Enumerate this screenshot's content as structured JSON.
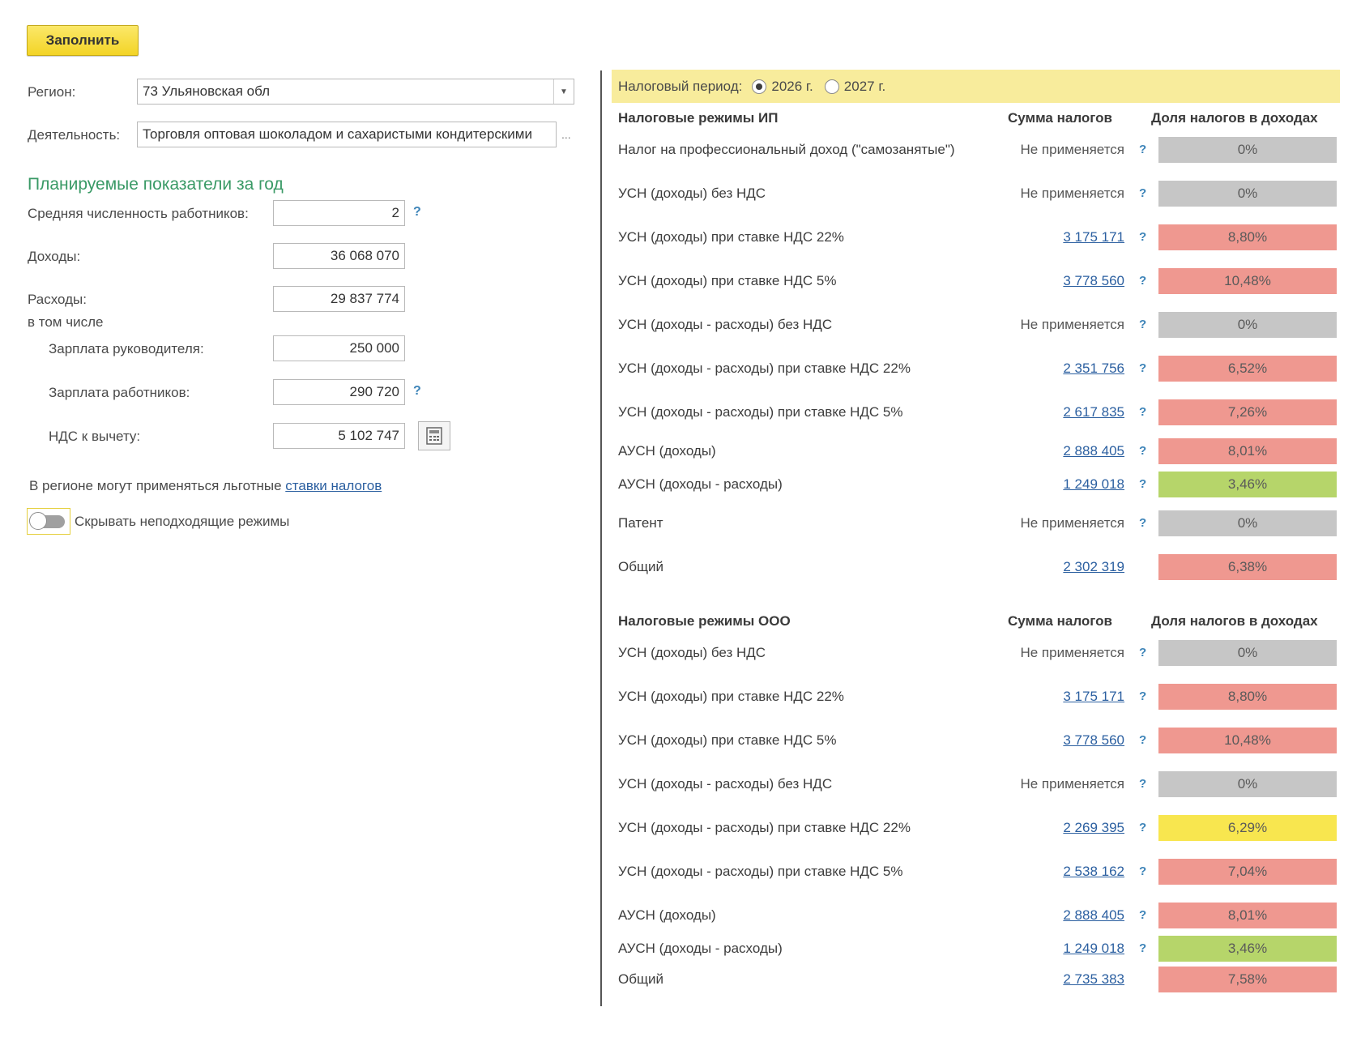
{
  "toolbar": {
    "fill_label": "Заполнить"
  },
  "form": {
    "region_label": "Регион:",
    "region_value": "73 Ульяновская обл",
    "activity_label": "Деятельность:",
    "activity_value": "Торговля оптовая шоколадом и сахаристыми кондитерскими",
    "activity_more": "...",
    "section_title": "Планируемые показатели за год",
    "employees_label": "Средняя численность работников:",
    "employees_value": "2",
    "income_label": "Доходы:",
    "income_value": "36 068 070",
    "expenses_label": "Расходы:",
    "including_label": "в том числе",
    "director_salary_label": "Зарплата руководителя:",
    "director_salary_value": "250 000",
    "employees_salary_label": "Зарплата работников:",
    "employees_salary_value": "290 720",
    "vat_label": "НДС к вычету:",
    "vat_value": "5 102 747",
    "expenses_value": "29 837 774",
    "benefit_text": "В регионе могут применяться льготные ",
    "benefit_link": "ставки налогов",
    "hide_toggle_label": "Скрывать неподходящие режимы",
    "hide_toggle_on": false,
    "help_mark": "?"
  },
  "period": {
    "label": "Налоговый период:",
    "options": [
      {
        "label": "2026 г.",
        "selected": true
      },
      {
        "label": "2027 г.",
        "selected": false
      }
    ]
  },
  "columns": {
    "sum": "Сумма налогов",
    "share": "Доля налогов в доходах"
  },
  "colors": {
    "grey": "#c6c6c6",
    "red": "#ef9890",
    "green": "#b6d56a",
    "yellow": "#f8e64f"
  },
  "ip": {
    "title": "Налоговые режимы ИП",
    "rows": [
      {
        "name": "Налог на профессиональный доход (\"самозанятые\")",
        "sum": "Не применяется",
        "share": "0%",
        "color": "grey",
        "help": true
      },
      {
        "name": "УСН (доходы) без НДС",
        "sum": "Не применяется",
        "share": "0%",
        "color": "grey",
        "help": true
      },
      {
        "name": "УСН (доходы) при ставке НДС 22%",
        "sum": "3 175 171",
        "share": "8,80%",
        "color": "red",
        "help": true
      },
      {
        "name": "УСН (доходы) при ставке НДС 5%",
        "sum": "3 778 560",
        "share": "10,48%",
        "color": "red",
        "help": true
      },
      {
        "name": "УСН (доходы - расходы) без НДС",
        "sum": "Не применяется",
        "share": "0%",
        "color": "grey",
        "help": true
      },
      {
        "name": "УСН (доходы - расходы) при ставке НДС 22%",
        "sum": "2 351 756",
        "share": "6,52%",
        "color": "red",
        "help": true
      },
      {
        "name": "УСН (доходы - расходы) при ставке НДС 5%",
        "sum": "2 617 835",
        "share": "7,26%",
        "color": "red",
        "help": true
      },
      {
        "name": "АУСН (доходы)",
        "sum": "2 888 405",
        "share": "8,01%",
        "color": "red",
        "help": true
      },
      {
        "name": "АУСН (доходы - расходы)",
        "sum": "1 249 018",
        "share": "3,46%",
        "color": "green",
        "help": true
      },
      {
        "name": "Патент",
        "sum": "Не применяется",
        "share": "0%",
        "color": "grey",
        "help": true
      },
      {
        "name": "Общий",
        "sum": "2 302 319",
        "share": "6,38%",
        "color": "red",
        "help": false
      }
    ]
  },
  "ooo": {
    "title": "Налоговые режимы ООО",
    "rows": [
      {
        "name": "УСН (доходы) без НДС",
        "sum": "Не применяется",
        "share": "0%",
        "color": "grey",
        "help": true
      },
      {
        "name": "УСН (доходы) при ставке НДС 22%",
        "sum": "3 175 171",
        "share": "8,80%",
        "color": "red",
        "help": true
      },
      {
        "name": "УСН (доходы) при ставке НДС 5%",
        "sum": "3 778 560",
        "share": "10,48%",
        "color": "red",
        "help": true
      },
      {
        "name": "УСН (доходы - расходы) без НДС",
        "sum": "Не применяется",
        "share": "0%",
        "color": "grey",
        "help": true
      },
      {
        "name": "УСН (доходы - расходы) при ставке НДС 22%",
        "sum": "2 269 395",
        "share": "6,29%",
        "color": "yellow",
        "help": true
      },
      {
        "name": "УСН (доходы - расходы) при ставке НДС 5%",
        "sum": "2 538 162",
        "share": "7,04%",
        "color": "red",
        "help": true
      },
      {
        "name": "АУСН (доходы)",
        "sum": "2 888 405",
        "share": "8,01%",
        "color": "red",
        "help": true
      },
      {
        "name": "АУСН (доходы - расходы)",
        "sum": "1 249 018",
        "share": "3,46%",
        "color": "green",
        "help": true
      },
      {
        "name": "Общий",
        "sum": "2 735 383",
        "share": "7,58%",
        "color": "red",
        "help": false
      }
    ]
  }
}
